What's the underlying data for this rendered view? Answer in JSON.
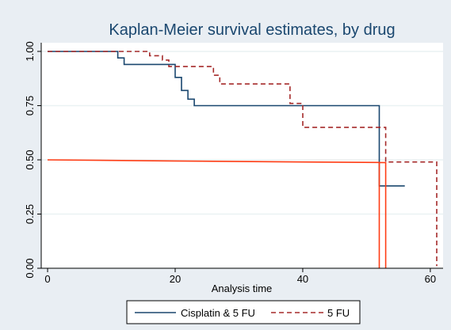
{
  "chart_data": {
    "type": "line",
    "title": "Kaplan-Meier survival estimates, by drug",
    "xlabel": "Analysis time",
    "ylabel": "",
    "xlim": [
      -1,
      62
    ],
    "ylim": [
      0,
      1.04
    ],
    "xticks": [
      0,
      20,
      40,
      60
    ],
    "yticks": [
      0,
      0.25,
      0.5,
      0.75,
      1.0
    ],
    "xtick_labels": [
      "0",
      "20",
      "40",
      "60"
    ],
    "ytick_labels": [
      "0.00",
      "0.25",
      "0.50",
      "0.75",
      "1.00"
    ],
    "grid": "horizontal",
    "legend_position": "bottom",
    "series": [
      {
        "name": "Cisplatin & 5 FU",
        "color": "#1a476f",
        "dash": "solid",
        "points": [
          [
            0,
            1.0
          ],
          [
            11,
            1.0
          ],
          [
            11,
            0.97
          ],
          [
            12,
            0.97
          ],
          [
            12,
            0.94
          ],
          [
            20,
            0.94
          ],
          [
            20,
            0.88
          ],
          [
            21,
            0.88
          ],
          [
            21,
            0.82
          ],
          [
            22,
            0.82
          ],
          [
            22,
            0.78
          ],
          [
            23,
            0.78
          ],
          [
            23,
            0.75
          ],
          [
            52,
            0.75
          ],
          [
            52,
            0.38
          ],
          [
            56,
            0.38
          ]
        ]
      },
      {
        "name": "5 FU",
        "color": "#a52a2a",
        "dash": "dashed",
        "points": [
          [
            0,
            1.0
          ],
          [
            16,
            1.0
          ],
          [
            16,
            0.98
          ],
          [
            18,
            0.98
          ],
          [
            18,
            0.96
          ],
          [
            19,
            0.96
          ],
          [
            19,
            0.93
          ],
          [
            26,
            0.93
          ],
          [
            26,
            0.89
          ],
          [
            27,
            0.89
          ],
          [
            27,
            0.85
          ],
          [
            38,
            0.85
          ],
          [
            38,
            0.76
          ],
          [
            40,
            0.76
          ],
          [
            40,
            0.65
          ],
          [
            53,
            0.65
          ],
          [
            53,
            0.49
          ],
          [
            61,
            0.49
          ],
          [
            61,
            0.01
          ]
        ]
      },
      {
        "name": "",
        "color": "#ff3c14",
        "dash": "solid",
        "points": [
          [
            0,
            0.5
          ],
          [
            20,
            0.495
          ],
          [
            40,
            0.49
          ],
          [
            52,
            0.488
          ],
          [
            52,
            0
          ],
          [
            52,
            0.488
          ],
          [
            53,
            0.487
          ],
          [
            53,
            0
          ]
        ]
      }
    ],
    "legend": [
      {
        "label": "Cisplatin & 5 FU",
        "color": "#1a476f",
        "dash": "solid"
      },
      {
        "label": "5 FU",
        "color": "#a52a2a",
        "dash": "dashed"
      }
    ]
  }
}
